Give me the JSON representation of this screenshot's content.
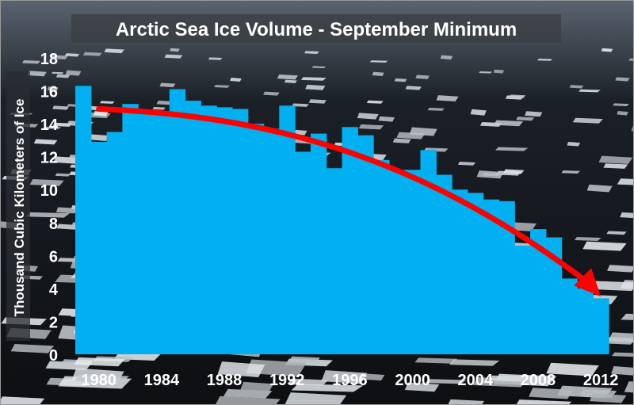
{
  "chart_data": {
    "type": "bar",
    "title": "Arctic Sea Ice Volume - September Minimum",
    "ylabel": "Thousand Cubic Kilometers of Ice",
    "xlabel": "",
    "ylim": [
      0,
      18
    ],
    "yticks": [
      0,
      2,
      4,
      6,
      8,
      10,
      12,
      14,
      16,
      18
    ],
    "xticks": [
      "1980",
      "1984",
      "1988",
      "1992",
      "1996",
      "2000",
      "2004",
      "2008",
      "2012"
    ],
    "categories": [
      "1979",
      "1980",
      "1981",
      "1982",
      "1983",
      "1984",
      "1985",
      "1986",
      "1987",
      "1988",
      "1989",
      "1990",
      "1991",
      "1992",
      "1993",
      "1994",
      "1995",
      "1996",
      "1997",
      "1998",
      "1999",
      "2000",
      "2001",
      "2002",
      "2003",
      "2004",
      "2005",
      "2006",
      "2007",
      "2008",
      "2009",
      "2010",
      "2011",
      "2012"
    ],
    "values": [
      16.3,
      12.9,
      13.5,
      15.2,
      14.6,
      14.6,
      16.1,
      15.4,
      15.1,
      15.0,
      14.9,
      14.0,
      13.7,
      15.1,
      12.3,
      13.4,
      11.3,
      13.8,
      13.3,
      11.8,
      11.2,
      11.2,
      12.4,
      10.9,
      10.0,
      9.8,
      9.4,
      9.3,
      6.6,
      7.6,
      7.1,
      4.6,
      4.0,
      3.4
    ],
    "trend": {
      "type": "curved-arrow",
      "color": "#ff0000",
      "points": [
        [
          1980,
          14.9
        ],
        [
          1990,
          14.5
        ],
        [
          2000,
          12.5
        ],
        [
          2012,
          3.5
        ]
      ]
    },
    "colors": {
      "bar": "#00b0f0",
      "arrow": "#ff0000",
      "text": "#ffffff",
      "background": "#1a1d22"
    },
    "background": "arctic-sea-ice-floes-photo",
    "grid": false,
    "legend": "none"
  }
}
